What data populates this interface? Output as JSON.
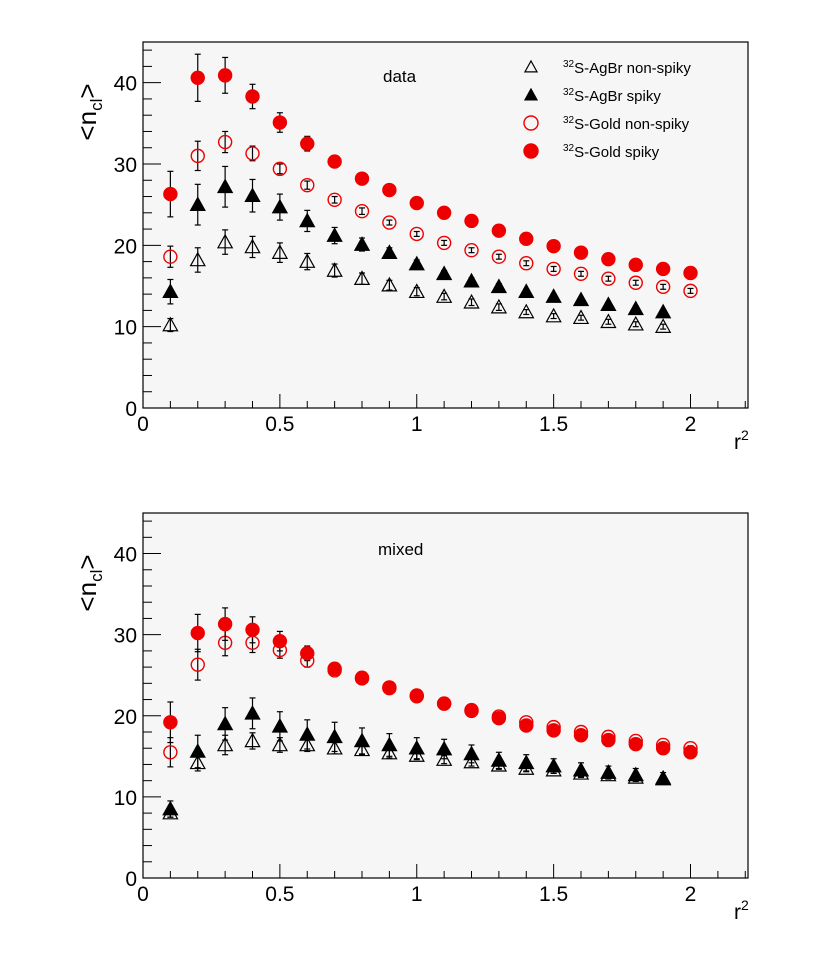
{
  "chart_data": [
    {
      "type": "scatter",
      "annotation": "data",
      "xlabel": "r",
      "xlabel_sup": "2",
      "ylabel": "<n",
      "ylabel_sub": "cl",
      "ylabel_end": ">",
      "xlim": [
        0,
        2.21
      ],
      "ylim": [
        0,
        45
      ],
      "x_ticks": [
        "0",
        "0.5",
        "1",
        "1.5",
        "2"
      ],
      "y_ticks": [
        "0",
        "10",
        "20",
        "30",
        "40"
      ],
      "grid": false,
      "legend_position": "top-right",
      "x": [
        0.1,
        0.2,
        0.3,
        0.4,
        0.5,
        0.6,
        0.7,
        0.8,
        0.9,
        1.0,
        1.1,
        1.2,
        1.3,
        1.4,
        1.5,
        1.6,
        1.7,
        1.8,
        1.9,
        2.0
      ],
      "series": [
        {
          "name_sup": "32",
          "name": "S-AgBr non-spiky",
          "marker": "open-triangle",
          "color": "#000000",
          "values": [
            10.2,
            18.2,
            20.4,
            19.8,
            19.1,
            18.0,
            16.9,
            15.9,
            15.1,
            14.3,
            13.7,
            13.0,
            12.4,
            11.8,
            11.3,
            11.1,
            10.6,
            10.3,
            10.0
          ],
          "errors": [
            0.8,
            1.5,
            1.5,
            1.3,
            1.2,
            1.0,
            0.8,
            0.7,
            0.6,
            0.5,
            0.4,
            0.4,
            0.4,
            0.3,
            0.3,
            0.3,
            0.3,
            0.3,
            0.3
          ]
        },
        {
          "name_sup": "32",
          "name": "S-AgBr spiky",
          "marker": "filled-triangle",
          "color": "#000000",
          "values": [
            14.3,
            25.0,
            27.2,
            26.1,
            24.7,
            23.0,
            21.2,
            20.1,
            19.1,
            17.7,
            16.5,
            15.6,
            14.9,
            14.3,
            13.7,
            13.3,
            12.7,
            12.2,
            11.8
          ],
          "errors": [
            1.5,
            2.5,
            2.5,
            2.0,
            1.6,
            1.3,
            1.0,
            0.8,
            0.6,
            0.5,
            0.4,
            0.4,
            0.4,
            0.3,
            0.3,
            0.3,
            0.3,
            0.3,
            0.3
          ]
        },
        {
          "name_sup": "32",
          "name": "S-Gold non-spiky",
          "marker": "open-circle",
          "color": "#ee0000",
          "values": [
            18.6,
            31.0,
            32.7,
            31.3,
            29.4,
            27.4,
            25.6,
            24.2,
            22.8,
            21.4,
            20.3,
            19.4,
            18.6,
            17.8,
            17.1,
            16.5,
            15.9,
            15.4,
            14.9,
            14.4
          ],
          "errors": [
            1.3,
            1.8,
            1.3,
            0.9,
            0.6,
            0.5,
            0.4,
            0.4,
            0.3,
            0.3,
            0.3,
            0.3,
            0.3,
            0.3,
            0.3,
            0.3,
            0.3,
            0.3,
            0.3,
            0.3
          ]
        },
        {
          "name_sup": "32",
          "name": "S-Gold spiky",
          "marker": "filled-circle",
          "color": "#ee0000",
          "values": [
            26.3,
            40.6,
            40.9,
            38.3,
            35.1,
            32.5,
            30.3,
            28.2,
            26.8,
            25.2,
            24.0,
            23.0,
            21.8,
            20.8,
            19.9,
            19.1,
            18.3,
            17.6,
            17.1,
            16.6
          ],
          "errors": [
            2.8,
            2.9,
            2.2,
            1.5,
            1.2,
            0.9,
            0.7,
            0.6,
            0.5,
            0.4,
            0.4,
            0.3,
            0.3,
            0.3,
            0.3,
            0.3,
            0.3,
            0.3,
            0.3,
            0.3
          ]
        }
      ]
    },
    {
      "type": "scatter",
      "annotation": "mixed",
      "xlabel": "r",
      "xlabel_sup": "2",
      "ylabel": "<n",
      "ylabel_sub": "cl",
      "ylabel_end": ">",
      "xlim": [
        0,
        2.21
      ],
      "ylim": [
        0,
        45
      ],
      "x_ticks": [
        "0",
        "0.5",
        "1",
        "1.5",
        "2"
      ],
      "y_ticks": [
        "0",
        "10",
        "20",
        "30",
        "40"
      ],
      "grid": false,
      "x": [
        0.1,
        0.2,
        0.3,
        0.4,
        0.5,
        0.6,
        0.7,
        0.8,
        0.9,
        1.0,
        1.1,
        1.2,
        1.3,
        1.4,
        1.5,
        1.6,
        1.7,
        1.8,
        1.9,
        2.0
      ],
      "series": [
        {
          "marker": "open-triangle",
          "color": "#000000",
          "values": [
            8.0,
            14.2,
            16.4,
            16.9,
            16.4,
            16.4,
            16.0,
            15.8,
            15.4,
            15.1,
            14.6,
            14.3,
            13.9,
            13.5,
            13.3,
            12.9,
            12.7,
            12.4,
            12.2
          ],
          "errors": [
            0.5,
            1.0,
            1.2,
            1.0,
            0.9,
            0.8,
            0.7,
            0.6,
            0.6,
            0.5,
            0.5,
            0.5,
            0.5,
            0.4,
            0.4,
            0.4,
            0.4,
            0.4,
            0.4
          ]
        },
        {
          "marker": "filled-triangle",
          "color": "#000000",
          "values": [
            8.5,
            15.6,
            19.0,
            20.3,
            18.7,
            17.7,
            17.4,
            16.9,
            16.4,
            16.0,
            15.9,
            15.3,
            14.5,
            14.2,
            13.8,
            13.3,
            13.0,
            12.7,
            12.3
          ],
          "errors": [
            1.0,
            2.0,
            2.0,
            1.9,
            1.8,
            1.8,
            1.8,
            1.6,
            1.4,
            1.3,
            1.2,
            1.1,
            1.0,
            1.0,
            0.9,
            0.9,
            0.8,
            0.8,
            0.7
          ]
        },
        {
          "marker": "open-circle",
          "color": "#ee0000",
          "values": [
            15.5,
            26.3,
            29.0,
            29.0,
            28.1,
            26.8,
            25.6,
            24.6,
            23.4,
            22.5,
            21.5,
            20.7,
            19.9,
            19.2,
            18.6,
            18.0,
            17.4,
            16.9,
            16.4,
            16.0
          ],
          "errors": [
            1.8,
            1.9,
            1.6,
            1.2,
            1.0,
            0.8,
            0.6,
            0.5,
            0.5,
            0.4,
            0.4,
            0.3,
            0.3,
            0.3,
            0.3,
            0.3,
            0.3,
            0.3,
            0.3,
            0.3
          ]
        },
        {
          "marker": "filled-circle",
          "color": "#ee0000",
          "values": [
            19.2,
            30.2,
            31.3,
            30.6,
            29.2,
            27.7,
            25.8,
            24.7,
            23.5,
            22.4,
            21.5,
            20.6,
            19.7,
            18.8,
            18.2,
            17.6,
            17.0,
            16.5,
            16.0,
            15.5
          ],
          "errors": [
            2.5,
            2.3,
            2.0,
            1.6,
            1.2,
            0.9,
            0.7,
            0.6,
            0.5,
            0.4,
            0.4,
            0.3,
            0.3,
            0.3,
            0.3,
            0.3,
            0.3,
            0.3,
            0.3,
            0.3
          ]
        }
      ]
    }
  ]
}
